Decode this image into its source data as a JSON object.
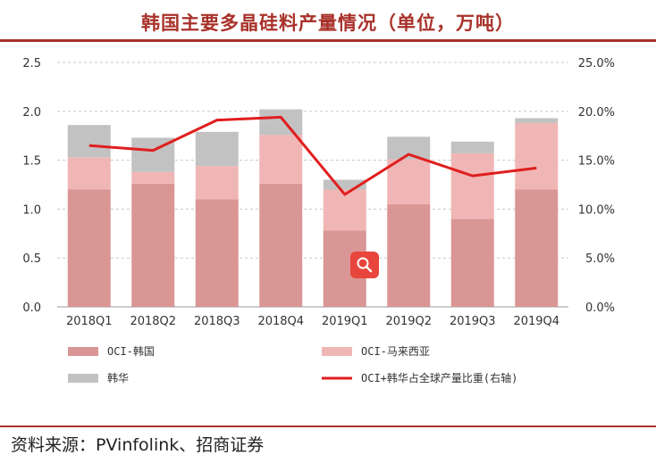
{
  "title": "韩国主要多晶硅料产量情况（单位，万吨）",
  "source": "资料来源：PVinfolink、招商证券",
  "chart_data": {
    "type": "bar",
    "stacked": true,
    "categories": [
      "2018Q1",
      "2018Q2",
      "2018Q3",
      "2018Q4",
      "2019Q1",
      "2019Q2",
      "2019Q3",
      "2019Q4"
    ],
    "series": [
      {
        "name": "OCI-韩国",
        "color": "#d99694",
        "values": [
          1.2,
          1.26,
          1.1,
          1.26,
          0.78,
          1.05,
          0.9,
          1.2
        ]
      },
      {
        "name": "OCI-马来西亚",
        "color": "#f0b6b5",
        "values": [
          0.33,
          0.12,
          0.34,
          0.5,
          0.42,
          0.46,
          0.67,
          0.68
        ]
      },
      {
        "name": "韩华",
        "color": "#c2c2c2",
        "values": [
          0.33,
          0.35,
          0.35,
          0.26,
          0.1,
          0.23,
          0.12,
          0.05
        ]
      }
    ],
    "line": {
      "name": "OCI+韩华占全球产量比重(右轴)",
      "color": "#e01e1e",
      "values": [
        0.165,
        0.16,
        0.191,
        0.194,
        0.115,
        0.156,
        0.134,
        0.142
      ]
    },
    "ylim": [
      0,
      2.5
    ],
    "yticks": [
      "2.5",
      "2.0",
      "1.5",
      "1.0",
      "0.5",
      "0.0"
    ],
    "y2lim": [
      0,
      0.25
    ],
    "y2ticks": [
      "25.0%",
      "20.0%",
      "15.0%",
      "10.0%",
      "5.0%",
      "0.0%"
    ],
    "grid": true,
    "legend_position": "bottom"
  },
  "icons": {
    "search": "search-icon"
  }
}
